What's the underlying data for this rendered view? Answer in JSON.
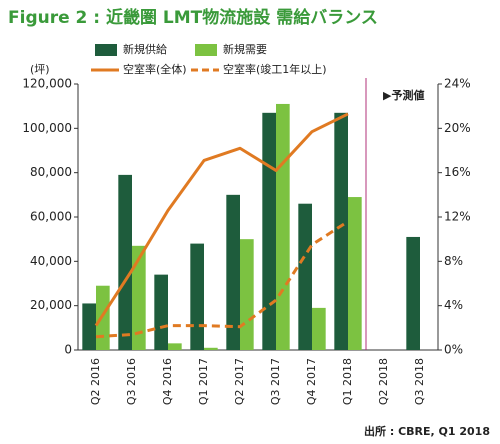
{
  "chart_data": {
    "type": "bar",
    "title": "Figure 2 : 近畿圏 LMT物流施設 需給バランス",
    "y_label": "(坪)",
    "annotation": "▶予測値",
    "source": "出所 : CBRE, Q1 2018",
    "categories": [
      "Q2 2016",
      "Q3 2016",
      "Q4 2016",
      "Q1 2017",
      "Q2 2017",
      "Q3 2017",
      "Q4 2017",
      "Q1 2018",
      "Q2 2018",
      "Q3 2018"
    ],
    "series": [
      {
        "name": "新規供給",
        "color": "#1e5c3c",
        "kind": "bar",
        "values": [
          21000,
          79000,
          34000,
          48000,
          70000,
          107000,
          66000,
          107000,
          null,
          51000
        ]
      },
      {
        "name": "新規需要",
        "color": "#7cc241",
        "kind": "bar",
        "values": [
          29000,
          47000,
          3000,
          1000,
          50000,
          111000,
          19000,
          69000,
          null,
          null
        ]
      },
      {
        "name": "空室率(全体)",
        "color": "#e07a22",
        "kind": "line",
        "axis": "y2",
        "dash": false,
        "values": [
          2.2,
          7.2,
          12.6,
          17.1,
          18.2,
          16.2,
          19.7,
          21.3,
          null,
          null
        ]
      },
      {
        "name": "空室率(竣工1年以上)",
        "color": "#e07a22",
        "kind": "line",
        "axis": "y2",
        "dash": true,
        "values": [
          1.2,
          1.4,
          2.2,
          2.2,
          2.1,
          4.5,
          9.5,
          11.6,
          null,
          null
        ]
      }
    ],
    "ylim": [
      0,
      120000
    ],
    "yticks": [
      0,
      {
        "value": 20000,
        "label": "20,000"
      },
      {
        "value": 40000,
        "label": "40,000"
      },
      {
        "value": 60000,
        "label": "60,000"
      },
      {
        "value": 80000,
        "label": "80,000"
      },
      {
        "value": 100000,
        "label": "100,000"
      },
      {
        "value": 120000,
        "label": "120,000"
      }
    ],
    "y2lim": [
      0,
      24
    ],
    "y2ticks": [
      {
        "value": 0,
        "label": "0%"
      },
      {
        "value": 4,
        "label": "4%"
      },
      {
        "value": 8,
        "label": "8%"
      },
      {
        "value": 12,
        "label": "12%"
      },
      {
        "value": 16,
        "label": "16%"
      },
      {
        "value": 20,
        "label": "20%"
      },
      {
        "value": 24,
        "label": "24%"
      }
    ],
    "forecast_color": "#b0307a"
  }
}
